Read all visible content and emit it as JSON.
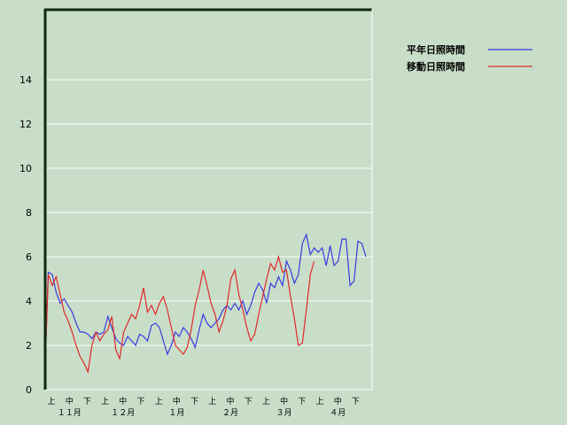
{
  "chart_data": {
    "type": "line",
    "ylim": [
      0,
      16
    ],
    "yticks": [
      "0",
      "2",
      "4",
      "6",
      "8",
      "10",
      "12",
      "14"
    ],
    "grid": true,
    "legend_position": "top-right",
    "dekad_labels": [
      "上",
      "中",
      "下",
      "上",
      "中",
      "下",
      "上",
      "中",
      "下",
      "上",
      "中",
      "下",
      "上",
      "中",
      "下",
      "上",
      "中",
      "下"
    ],
    "month_labels": [
      "１１月",
      "１２月",
      "１月",
      "２月",
      "３月",
      "４月"
    ],
    "series": [
      {
        "name": "平年日照時間",
        "color": "#3a3ae0",
        "values": [
          0,
          5.3,
          5.2,
          4.4,
          3.9,
          4.1,
          3.8,
          3.5,
          3.0,
          2.6,
          2.6,
          2.5,
          2.3,
          2.6,
          2.5,
          2.6,
          3.3,
          2.8,
          2.3,
          2.1,
          2.0,
          2.4,
          2.2,
          2.0,
          2.5,
          2.4,
          2.2,
          2.9,
          3.0,
          2.8,
          2.2,
          1.6,
          2.0,
          2.6,
          2.4,
          2.8,
          2.6,
          2.3,
          1.9,
          2.7,
          3.4,
          3.0,
          2.8,
          3.0,
          3.2,
          3.6,
          3.8,
          3.6,
          3.9,
          3.6,
          4.0,
          3.4,
          3.8,
          4.4,
          4.8,
          4.5,
          3.9,
          4.8,
          4.6,
          5.1,
          4.7,
          5.8,
          5.4,
          4.8,
          5.2,
          6.6,
          7.0,
          6.1,
          6.4,
          6.2,
          6.4,
          5.6,
          6.5,
          5.6,
          5.8,
          6.8,
          6.8,
          4.7,
          4.9,
          6.7,
          6.6,
          6.0
        ]
      },
      {
        "name": "移動日照時間",
        "color": "#e02a2a",
        "values": [
          0,
          5.2,
          4.7,
          5.1,
          4.3,
          3.5,
          3.1,
          2.6,
          2.0,
          1.5,
          1.2,
          0.8,
          2.0,
          2.6,
          2.2,
          2.5,
          2.7,
          3.3,
          1.8,
          1.4,
          2.6,
          3.0,
          3.4,
          3.2,
          3.8,
          4.6,
          3.5,
          3.8,
          3.4,
          3.9,
          4.2,
          3.6,
          2.8,
          2.0,
          1.8,
          1.6,
          1.9,
          2.7,
          3.8,
          4.5,
          5.4,
          4.7,
          3.9,
          3.4,
          2.6,
          3.1,
          3.8,
          5.0,
          5.4,
          4.3,
          3.6,
          2.8,
          2.2,
          2.5,
          3.4,
          4.2,
          5.0,
          5.7,
          5.4,
          6.0,
          5.3,
          5.4,
          4.2,
          3.2,
          2.0,
          2.1,
          3.6,
          5.2,
          5.8
        ]
      }
    ]
  }
}
